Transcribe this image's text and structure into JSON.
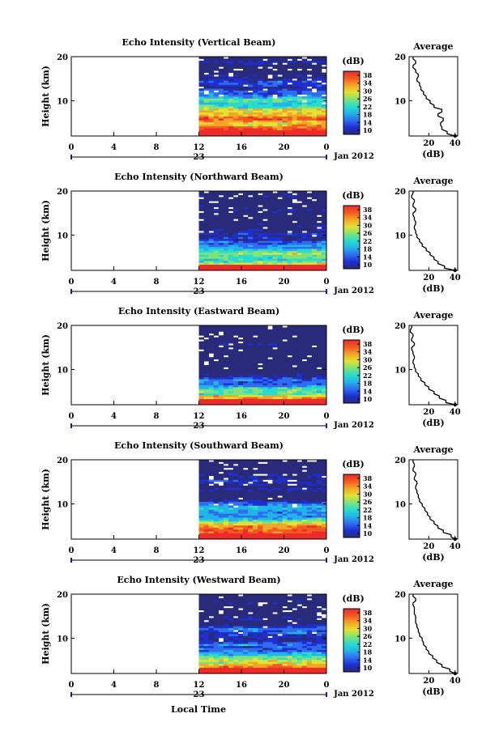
{
  "figure": {
    "xlabel": "Local Time",
    "date_label": "Jan 2012",
    "day_label": "23",
    "x_ticks": [
      "0",
      "4",
      "8",
      "12",
      "16",
      "20",
      "0"
    ],
    "y_ticks": [
      "20",
      "10"
    ],
    "ylabel": "Height (km)",
    "colorbar_unit": "(dB)",
    "colorbar_ticks": [
      "38",
      "34",
      "30",
      "26",
      "22",
      "18",
      "14",
      "10"
    ],
    "colorbar_colors": [
      "#2a2a7a",
      "#1e2fd0",
      "#2f6cf0",
      "#22b4e8",
      "#29dccc",
      "#7fe27a",
      "#e2e232",
      "#f5a428",
      "#f25a22",
      "#ee2a2a"
    ],
    "avg_title": "Average",
    "avg_xlabel": "(dB)",
    "avg_x_ticks": [
      "20",
      "40"
    ],
    "avg_y_ticks": [
      "20",
      "10"
    ]
  },
  "chart_data": [
    {
      "type": "heatmap",
      "title": "Echo Intensity (Vertical Beam)",
      "x_range_hours": [
        0,
        24
      ],
      "data_start_hour": 12,
      "height_range_km": [
        2,
        20
      ],
      "color_range_db": [
        10,
        38
      ],
      "avg_profile": {
        "heights_km": [
          2,
          3,
          4,
          5,
          6,
          7,
          8,
          9,
          10,
          11,
          12,
          13,
          14,
          15,
          16,
          17,
          18,
          19,
          20
        ],
        "values_db": [
          40,
          34,
          30,
          29,
          31,
          27,
          30,
          24,
          21,
          18,
          16,
          14,
          13,
          11,
          12,
          10,
          8,
          10,
          8
        ]
      }
    },
    {
      "type": "heatmap",
      "title": "Echo Intensity (Northward Beam)",
      "x_range_hours": [
        0,
        24
      ],
      "data_start_hour": 12,
      "height_range_km": [
        2,
        20
      ],
      "color_range_db": [
        10,
        38
      ],
      "avg_profile": {
        "heights_km": [
          2,
          3,
          4,
          5,
          6,
          7,
          8,
          9,
          10,
          11,
          12,
          13,
          14,
          15,
          16,
          17,
          18,
          19,
          20
        ],
        "values_db": [
          40,
          32,
          27,
          24,
          21,
          18,
          15,
          13,
          11,
          10,
          9,
          10,
          9,
          8,
          10,
          8,
          9,
          7,
          8
        ]
      }
    },
    {
      "type": "heatmap",
      "title": "Echo Intensity (Eastward Beam)",
      "x_range_hours": [
        0,
        24
      ],
      "data_start_hour": 12,
      "height_range_km": [
        2,
        20
      ],
      "color_range_db": [
        10,
        38
      ],
      "avg_profile": {
        "heights_km": [
          2,
          3,
          4,
          5,
          6,
          7,
          8,
          9,
          10,
          11,
          12,
          13,
          14,
          15,
          16,
          17,
          18,
          19,
          20
        ],
        "values_db": [
          40,
          33,
          28,
          24,
          20,
          17,
          14,
          12,
          10,
          9,
          8,
          9,
          8,
          7,
          9,
          7,
          8,
          6,
          7
        ]
      }
    },
    {
      "type": "heatmap",
      "title": "Echo Intensity (Southward Beam)",
      "x_range_hours": [
        0,
        24
      ],
      "data_start_hour": 12,
      "height_range_km": [
        2,
        20
      ],
      "color_range_db": [
        10,
        38
      ],
      "avg_profile": {
        "heights_km": [
          2,
          3,
          4,
          5,
          6,
          7,
          8,
          9,
          10,
          11,
          12,
          13,
          14,
          15,
          16,
          17,
          18,
          19,
          20
        ],
        "values_db": [
          40,
          37,
          31,
          27,
          24,
          21,
          19,
          17,
          15,
          13,
          12,
          11,
          10,
          11,
          9,
          10,
          8,
          9,
          8
        ]
      }
    },
    {
      "type": "heatmap",
      "title": "Echo Intensity (Westward Beam)",
      "x_range_hours": [
        0,
        24
      ],
      "data_start_hour": 12,
      "height_range_km": [
        2,
        20
      ],
      "color_range_db": [
        10,
        38
      ],
      "avg_profile": {
        "heights_km": [
          2,
          3,
          4,
          5,
          6,
          7,
          8,
          9,
          10,
          11,
          12,
          13,
          14,
          15,
          16,
          17,
          18,
          19,
          20
        ],
        "values_db": [
          40,
          36,
          30,
          26,
          23,
          20,
          18,
          16,
          15,
          13,
          12,
          11,
          10,
          10,
          9,
          9,
          8,
          10,
          8
        ]
      }
    }
  ]
}
